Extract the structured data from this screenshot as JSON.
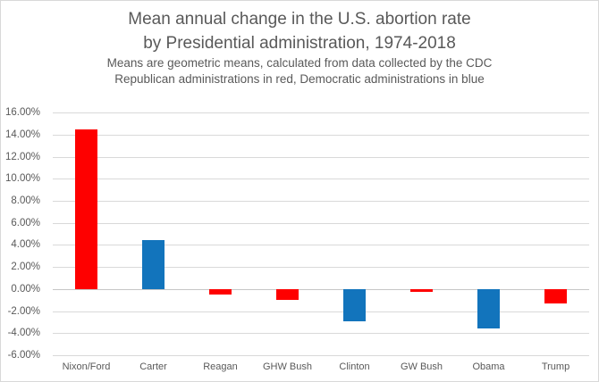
{
  "header": {
    "title_line1": "Mean annual change in the U.S. abortion rate",
    "title_line2": "by Presidential administration, 1974-2018",
    "subtitle_line1": "Means are geometric means, calculated from data collected by the CDC",
    "subtitle_line2": "Republican administrations in red, Democratic administrations in blue"
  },
  "chart_data": {
    "type": "bar",
    "title": "Mean annual change in the U.S. abortion rate by Presidential administration, 1974-2018",
    "subtitle": "Means are geometric means, calculated from data collected by the CDC. Republican administrations in red, Democratic administrations in blue",
    "categories": [
      "Nixon/Ford",
      "Carter",
      "Reagan",
      "GHW Bush",
      "Clinton",
      "GW Bush",
      "Obama",
      "Trump"
    ],
    "values": [
      14.5,
      4.4,
      -0.5,
      -1.0,
      -2.9,
      -0.3,
      -3.6,
      -1.3
    ],
    "unit": "percent",
    "parties": [
      "republican",
      "democratic",
      "republican",
      "republican",
      "democratic",
      "republican",
      "democratic",
      "republican"
    ],
    "party_colors": {
      "republican": "#fe0000",
      "democratic": "#1274bc"
    },
    "xlabel": "",
    "ylabel": "",
    "ylim": [
      -6,
      16
    ],
    "yticks": [
      {
        "value": 16,
        "label": "16.00%"
      },
      {
        "value": 14,
        "label": "14.00%"
      },
      {
        "value": 12,
        "label": "12.00%"
      },
      {
        "value": 10,
        "label": "10.00%"
      },
      {
        "value": 8,
        "label": "8.00%"
      },
      {
        "value": 6,
        "label": "6.00%"
      },
      {
        "value": 4,
        "label": "4.00%"
      },
      {
        "value": 2,
        "label": "2.00%"
      },
      {
        "value": 0,
        "label": "0.00%"
      },
      {
        "value": -2,
        "label": "-2.00%"
      },
      {
        "value": -4,
        "label": "-4.00%"
      },
      {
        "value": -6,
        "label": "-6.00%"
      }
    ],
    "grid": true,
    "legend": false,
    "colors": {
      "gridline": "#d9d9d9",
      "zero_axis": "#c6c6c6",
      "axis_text": "#595959",
      "title_text": "#595959",
      "background": "#ffffff"
    }
  }
}
